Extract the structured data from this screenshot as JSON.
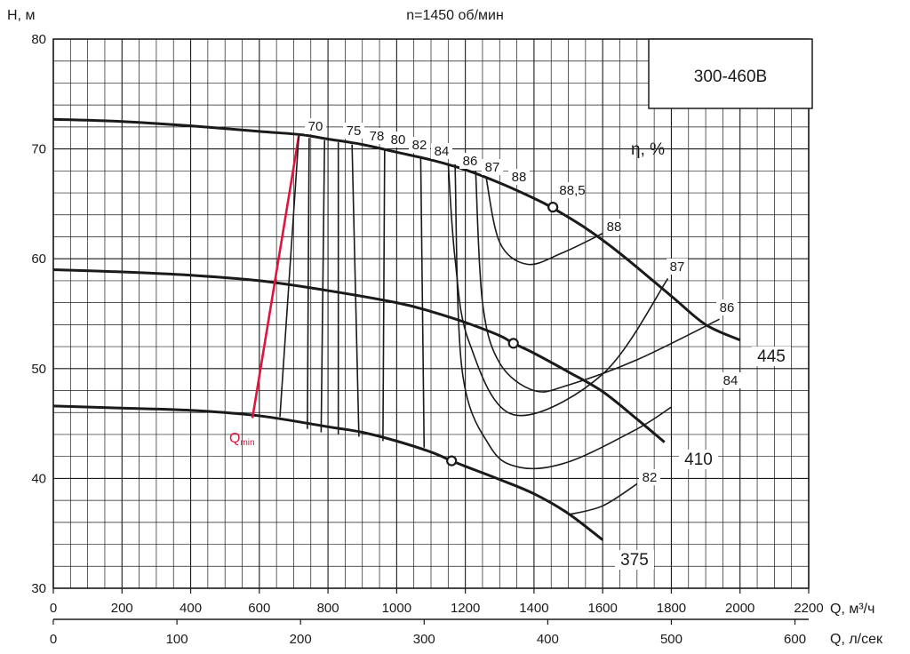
{
  "chart_data": {
    "type": "line",
    "title": "n=1450 об/мин",
    "model": "300-460В",
    "ylabel": "H, м",
    "xlabel": "Q, м³/ч",
    "x2label": "Q, л/сек",
    "efficiency_label": "η, %",
    "xlim": [
      0,
      2200
    ],
    "ylim": [
      30,
      80
    ],
    "x2lim": [
      0,
      611.1
    ],
    "grid": true,
    "x_ticks": [
      0,
      200,
      400,
      600,
      800,
      1000,
      1200,
      1400,
      1600,
      1800,
      2000,
      2200
    ],
    "x2_ticks": [
      0,
      100,
      200,
      300,
      400,
      500,
      600
    ],
    "y_ticks": [
      30,
      40,
      50,
      60,
      70,
      80
    ],
    "series": [
      {
        "name": "445",
        "x": [
          0,
          200,
          400,
          600,
          720,
          800,
          900,
          1000,
          1100,
          1200,
          1300,
          1400,
          1450,
          1550,
          1650,
          1800,
          1900,
          2000
        ],
        "y": [
          72.7,
          72.5,
          72.1,
          71.6,
          71.3,
          70.9,
          70.4,
          69.7,
          69.0,
          68.1,
          66.9,
          65.5,
          64.7,
          62.8,
          60.5,
          56.6,
          54.0,
          52.6
        ]
      },
      {
        "name": "410",
        "x": [
          0,
          200,
          400,
          600,
          800,
          1000,
          1100,
          1200,
          1300,
          1340,
          1400,
          1500,
          1600,
          1700,
          1780
        ],
        "y": [
          59.0,
          58.8,
          58.5,
          58.0,
          57.1,
          56.0,
          55.2,
          54.2,
          53.0,
          52.3,
          51.4,
          49.7,
          47.9,
          45.4,
          43.3
        ]
      },
      {
        "name": "375",
        "x": [
          0,
          200,
          400,
          600,
          800,
          900,
          1000,
          1100,
          1160,
          1200,
          1300,
          1400,
          1500,
          1600
        ],
        "y": [
          46.6,
          46.4,
          46.2,
          45.7,
          44.7,
          44.2,
          43.4,
          42.4,
          41.6,
          41.1,
          39.9,
          38.6,
          36.8,
          34.4
        ]
      },
      {
        "name": "Qmin",
        "x": [
          580,
          715
        ],
        "y": [
          45.5,
          71.2
        ]
      }
    ],
    "efficiency_contours": [
      {
        "label": "70",
        "x": [
          715,
          660
        ],
        "y": [
          71.2,
          45.6
        ]
      },
      {
        "label": "75",
        "x": [
          745,
          740
        ],
        "y": [
          71.0,
          44.5
        ]
      },
      {
        "label": "78",
        "x": [
          790,
          780
        ],
        "y": [
          70.8,
          44.2
        ]
      },
      {
        "label": "80",
        "x": [
          830,
          830
        ],
        "y": [
          70.6,
          44.0
        ]
      },
      {
        "label": "82",
        "x": [
          870,
          890
        ],
        "y": [
          70.4,
          43.8
        ]
      },
      {
        "label": "84",
        "x": [
          965,
          960
        ],
        "y": [
          69.9,
          43.4
        ]
      },
      {
        "label": "86",
        "x": [
          1070,
          1080
        ],
        "y": [
          69.2,
          42.8
        ]
      },
      {
        "label": "87",
        "x": [
          1150,
          1170,
          1210,
          1340,
          1600,
          1790
        ],
        "y": [
          68.7,
          60.0,
          52.5,
          45.8,
          49.5,
          58.2
        ]
      },
      {
        "label": "88",
        "x": [
          1260,
          1300,
          1380,
          1480,
          1600
        ],
        "y": [
          67.5,
          61.5,
          59.5,
          60.5,
          62.3
        ]
      },
      {
        "label": "88,5",
        "x": [
          1455
        ],
        "y": [
          64.7
        ]
      },
      {
        "label": "86",
        "x": [
          1230,
          1250,
          1300,
          1400,
          1500,
          1700,
          1940
        ],
        "y": [
          68.0,
          56.0,
          50.5,
          48.0,
          48.5,
          50.8,
          54.5
        ]
      },
      {
        "label": "84",
        "x": [
          1170,
          1190,
          1270,
          1360,
          1500,
          1700,
          1800
        ],
        "y": [
          68.6,
          50.0,
          43.0,
          41.0,
          41.5,
          44.5,
          46.5
        ]
      },
      {
        "label": "82",
        "x": [
          1500,
          1600,
          1700
        ],
        "y": [
          36.7,
          37.5,
          39.5
        ]
      }
    ],
    "operating_points": [
      {
        "x": 1455,
        "y": 64.7
      },
      {
        "x": 1340,
        "y": 52.3
      },
      {
        "x": 1160,
        "y": 41.6
      }
    ],
    "contour_labels": [
      "70",
      "75",
      "78",
      "80",
      "82",
      "84",
      "86",
      "87",
      "88",
      "88,5",
      "88",
      "87",
      "86",
      "84",
      "82"
    ],
    "impeller_labels": [
      "445",
      "410",
      "375"
    ],
    "qmin_label": "Q",
    "qmin_sub": "min"
  }
}
